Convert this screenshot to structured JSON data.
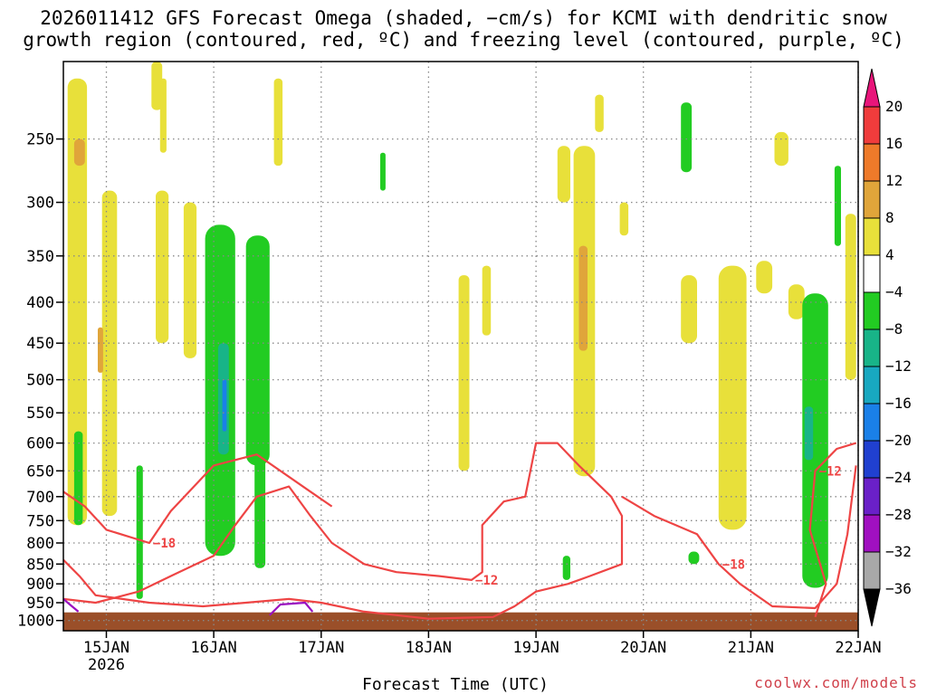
{
  "title_lines": [
    "2026011412 GFS Forecast Omega (shaded, −cm/s) for KCMI with dendritic snow",
    "growth region (contoured, red, ºC) and freezing level (contoured, purple, ºC)"
  ],
  "credit": "coolwx.com/models",
  "colors": {
    "ground": "#9a4f29",
    "dgz_contour": "#ee4444",
    "freezing_contour": "#9a10c0",
    "grid": "#888888"
  },
  "chart_data": {
    "type": "heatmap",
    "xlabel": "Forecast Time (UTC)",
    "ylabel": "",
    "x_ticks": [
      "15JAN",
      "16JAN",
      "17JAN",
      "18JAN",
      "19JAN",
      "20JAN",
      "21JAN",
      "22JAN"
    ],
    "x_sub_label": "2026",
    "x_range": [
      14.6,
      22.0
    ],
    "y_ticks": [
      250,
      300,
      350,
      400,
      450,
      500,
      550,
      600,
      650,
      700,
      750,
      800,
      850,
      900,
      950,
      1000
    ],
    "y_range_hPa": [
      200,
      1030
    ],
    "y_scale": "log (pressure)",
    "grid": true,
    "colorbar": {
      "labels": [
        "20",
        "16",
        "12",
        "8",
        "4",
        "−4",
        "−8",
        "−12",
        "−16",
        "−20",
        "−24",
        "−28",
        "−32",
        "−36"
      ],
      "bins": [
        {
          "range": [
            20,
            100
          ],
          "color": "#e8157a"
        },
        {
          "range": [
            16,
            20
          ],
          "color": "#f03c3c"
        },
        {
          "range": [
            12,
            16
          ],
          "color": "#ee7a2a"
        },
        {
          "range": [
            8,
            12
          ],
          "color": "#e0a53a"
        },
        {
          "range": [
            4,
            8
          ],
          "color": "#e8e03a"
        },
        {
          "range": [
            -4,
            4
          ],
          "color": "#ffffff"
        },
        {
          "range": [
            -8,
            -4
          ],
          "color": "#22cc22"
        },
        {
          "range": [
            -12,
            -8
          ],
          "color": "#18b488"
        },
        {
          "range": [
            -16,
            -12
          ],
          "color": "#18a8c0"
        },
        {
          "range": [
            -20,
            -16
          ],
          "color": "#1a80e8"
        },
        {
          "range": [
            -24,
            -20
          ],
          "color": "#2040d0"
        },
        {
          "range": [
            -28,
            -24
          ],
          "color": "#6a20c8"
        },
        {
          "range": [
            -32,
            -28
          ],
          "color": "#a010c0"
        },
        {
          "range": [
            -36,
            -32
          ],
          "color": "#a8a8a8"
        },
        {
          "range": [
            -100,
            -36
          ],
          "color": "#000000"
        }
      ]
    },
    "omega_features": [
      {
        "t0": 14.64,
        "t1": 14.82,
        "p0": 210,
        "p1": 760,
        "value": 5
      },
      {
        "t0": 14.7,
        "t1": 14.8,
        "p0": 250,
        "p1": 270,
        "value": 9
      },
      {
        "t0": 14.96,
        "t1": 15.1,
        "p0": 290,
        "p1": 740,
        "value": 5
      },
      {
        "t0": 14.92,
        "t1": 14.97,
        "p0": 430,
        "p1": 490,
        "value": 9
      },
      {
        "t0": 15.42,
        "t1": 15.52,
        "p0": 200,
        "p1": 230,
        "value": 5
      },
      {
        "t0": 15.46,
        "t1": 15.58,
        "p0": 290,
        "p1": 450,
        "value": 5
      },
      {
        "t0": 15.72,
        "t1": 15.84,
        "p0": 300,
        "p1": 470,
        "value": 5
      },
      {
        "t0": 15.5,
        "t1": 15.56,
        "p0": 210,
        "p1": 260,
        "value": 5
      },
      {
        "t0": 16.56,
        "t1": 16.64,
        "p0": 210,
        "p1": 270,
        "value": 5
      },
      {
        "t0": 18.28,
        "t1": 18.38,
        "p0": 370,
        "p1": 650,
        "value": 5
      },
      {
        "t0": 18.5,
        "t1": 18.58,
        "p0": 360,
        "p1": 440,
        "value": 5
      },
      {
        "t0": 19.2,
        "t1": 19.32,
        "p0": 255,
        "p1": 300,
        "value": 5
      },
      {
        "t0": 19.35,
        "t1": 19.55,
        "p0": 255,
        "p1": 660,
        "value": 5
      },
      {
        "t0": 19.4,
        "t1": 19.48,
        "p0": 340,
        "p1": 460,
        "value": 10
      },
      {
        "t0": 19.55,
        "t1": 19.63,
        "p0": 220,
        "p1": 245,
        "value": 5
      },
      {
        "t0": 19.78,
        "t1": 19.86,
        "p0": 300,
        "p1": 330,
        "value": 5
      },
      {
        "t0": 20.35,
        "t1": 20.5,
        "p0": 370,
        "p1": 450,
        "value": 5
      },
      {
        "t0": 20.7,
        "t1": 20.96,
        "p0": 360,
        "p1": 770,
        "value": 5
      },
      {
        "t0": 21.05,
        "t1": 21.2,
        "p0": 355,
        "p1": 390,
        "value": 5
      },
      {
        "t0": 21.22,
        "t1": 21.35,
        "p0": 245,
        "p1": 270,
        "value": 5
      },
      {
        "t0": 21.35,
        "t1": 21.5,
        "p0": 380,
        "p1": 420,
        "value": 5
      },
      {
        "t0": 21.88,
        "t1": 21.98,
        "p0": 310,
        "p1": 500,
        "value": 5
      },
      {
        "t0": 15.28,
        "t1": 15.34,
        "p0": 640,
        "p1": 940,
        "value": -6
      },
      {
        "t0": 14.7,
        "t1": 14.78,
        "p0": 580,
        "p1": 760,
        "value": -6
      },
      {
        "t0": 15.92,
        "t1": 16.2,
        "p0": 320,
        "p1": 830,
        "value": -6
      },
      {
        "t0": 16.04,
        "t1": 16.14,
        "p0": 450,
        "p1": 620,
        "value": -10
      },
      {
        "t0": 16.08,
        "t1": 16.12,
        "p0": 500,
        "p1": 580,
        "value": -17
      },
      {
        "t0": 16.3,
        "t1": 16.52,
        "p0": 330,
        "p1": 640,
        "value": -6
      },
      {
        "t0": 16.38,
        "t1": 16.48,
        "p0": 610,
        "p1": 860,
        "value": -6
      },
      {
        "t0": 17.55,
        "t1": 17.6,
        "p0": 260,
        "p1": 290,
        "value": -6
      },
      {
        "t0": 19.25,
        "t1": 19.32,
        "p0": 830,
        "p1": 890,
        "value": -6
      },
      {
        "t0": 20.35,
        "t1": 20.45,
        "p0": 225,
        "p1": 275,
        "value": -6
      },
      {
        "t0": 20.42,
        "t1": 20.52,
        "p0": 820,
        "p1": 850,
        "value": -6
      },
      {
        "t0": 21.48,
        "t1": 21.72,
        "p0": 390,
        "p1": 910,
        "value": -6
      },
      {
        "t0": 21.5,
        "t1": 21.58,
        "p0": 540,
        "p1": 630,
        "value": -10
      },
      {
        "t0": 21.78,
        "t1": 21.84,
        "p0": 270,
        "p1": 340,
        "value": -6
      }
    ],
    "dgz_contours": [
      {
        "label": "−12",
        "points": [
          [
            14.6,
            940
          ],
          [
            14.9,
            950
          ],
          [
            15.3,
            920
          ],
          [
            15.6,
            880
          ],
          [
            16.0,
            830
          ],
          [
            16.2,
            760
          ],
          [
            16.4,
            700
          ],
          [
            16.7,
            680
          ],
          [
            16.9,
            740
          ],
          [
            17.1,
            800
          ],
          [
            17.4,
            850
          ],
          [
            17.7,
            870
          ],
          [
            18.1,
            880
          ],
          [
            18.4,
            890
          ],
          [
            18.5,
            870
          ],
          [
            18.5,
            760
          ],
          [
            18.7,
            710
          ],
          [
            18.9,
            700
          ],
          [
            19.0,
            600
          ],
          [
            19.2,
            600
          ],
          [
            19.4,
            640
          ],
          [
            19.7,
            700
          ],
          [
            19.8,
            740
          ],
          [
            19.8,
            850
          ],
          [
            19.5,
            880
          ],
          [
            19.3,
            900
          ],
          [
            19.0,
            920
          ],
          [
            18.8,
            960
          ],
          [
            18.6,
            990
          ],
          [
            18.0,
            995
          ],
          [
            17.4,
            975
          ],
          [
            17.0,
            950
          ],
          [
            16.7,
            940
          ],
          [
            16.3,
            950
          ],
          [
            15.9,
            960
          ],
          [
            15.4,
            950
          ],
          [
            14.9,
            930
          ],
          [
            14.75,
            880
          ],
          [
            14.6,
            840
          ]
        ]
      },
      {
        "label": "−18",
        "points": [
          [
            14.6,
            690
          ],
          [
            14.8,
            720
          ],
          [
            15.0,
            770
          ],
          [
            15.4,
            800
          ],
          [
            15.6,
            730
          ],
          [
            16.0,
            640
          ],
          [
            16.4,
            620
          ],
          [
            16.9,
            690
          ],
          [
            17.1,
            720
          ]
        ]
      },
      {
        "label": "−18",
        "points": [
          [
            19.8,
            700
          ],
          [
            20.1,
            740
          ],
          [
            20.5,
            780
          ],
          [
            20.7,
            850
          ],
          [
            20.9,
            900
          ],
          [
            21.2,
            960
          ],
          [
            21.6,
            965
          ],
          [
            21.8,
            900
          ],
          [
            21.9,
            780
          ],
          [
            21.98,
            640
          ]
        ]
      },
      {
        "label": "−12",
        "points": [
          [
            21.98,
            600
          ],
          [
            21.8,
            610
          ],
          [
            21.6,
            650
          ],
          [
            21.55,
            770
          ],
          [
            21.7,
            900
          ],
          [
            21.6,
            990
          ]
        ]
      }
    ],
    "freezing_contours": [
      {
        "label": "",
        "points": [
          [
            14.6,
            940
          ],
          [
            14.68,
            960
          ],
          [
            14.74,
            975
          ]
        ]
      },
      {
        "label": "",
        "points": [
          [
            16.52,
            985
          ],
          [
            16.62,
            955
          ],
          [
            16.85,
            950
          ],
          [
            16.92,
            975
          ]
        ]
      }
    ]
  }
}
